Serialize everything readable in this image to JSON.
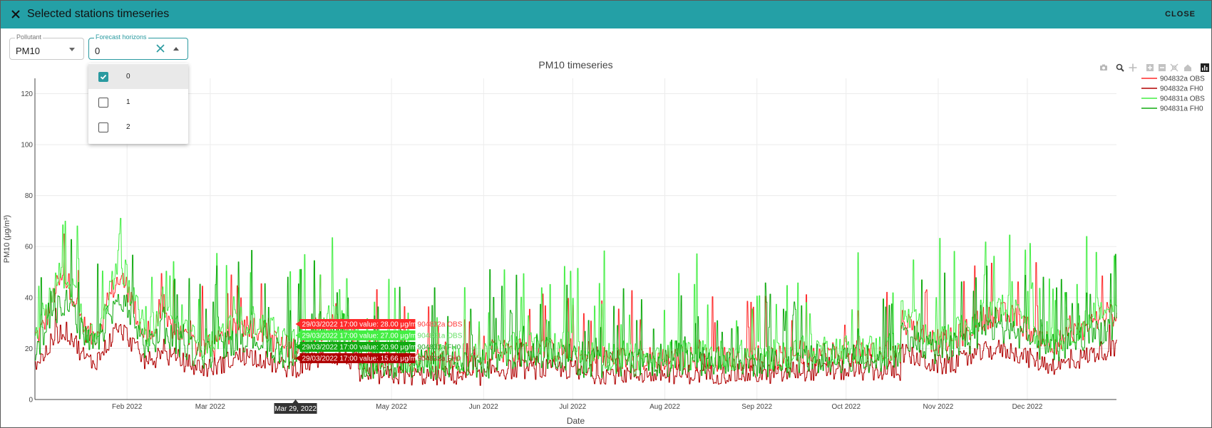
{
  "header": {
    "title": "Selected stations timeseries",
    "close_label": "CLOSE"
  },
  "pollutant": {
    "label": "Pollutant",
    "value": "PM10"
  },
  "horizons": {
    "label": "Forecast horizons",
    "value": "0",
    "options": [
      {
        "label": "0",
        "checked": true
      },
      {
        "label": "1",
        "checked": false
      },
      {
        "label": "2",
        "checked": false
      }
    ]
  },
  "modebar": [
    "camera-icon",
    "zoom-icon",
    "pan-icon",
    "zoom-in-icon",
    "zoom-out-icon",
    "autoscale-icon",
    "reset-axes-icon",
    "plotly-logo-icon"
  ],
  "chart_data": {
    "type": "line",
    "title": "PM10 timeseries",
    "xlabel": "Date",
    "ylabel": "PM10 (μg/m³)",
    "ylim": [
      0,
      126
    ],
    "yticks": [
      0,
      20,
      40,
      60,
      80,
      100,
      120
    ],
    "xticks": [
      "Feb 2022",
      "Mar 2022",
      "May 2022",
      "Jun 2022",
      "Jul 2022",
      "Aug 2022",
      "Sep 2022",
      "Oct 2022",
      "Nov 2022",
      "Dec 2022"
    ],
    "legend_position": "top-right",
    "series": [
      {
        "name": "904832a OBS",
        "color": "#ff2a2a"
      },
      {
        "name": "904832a FH0",
        "color": "#b00000"
      },
      {
        "name": "904831a OBS",
        "color": "#44ee44"
      },
      {
        "name": "904831a FH0",
        "color": "#11aa11"
      }
    ],
    "hover": {
      "x_label": "Mar 29, 2022",
      "tooltips": [
        {
          "text": "29/03/2022 17:00 value: 28.00 μg/m³",
          "series": "904832a OBS",
          "bg": "#ff2a2a",
          "fg": "#ffffff",
          "sc": "#ff3b3b"
        },
        {
          "text": "29/03/2022 17:00 value: 27.00 μg/m³",
          "series": "904831a OBS",
          "bg": "#44ee44",
          "fg": "#ffffff",
          "sc": "#66e066"
        },
        {
          "text": "29/03/2022 17:00 value: 20.90 μg/m³",
          "series": "904831a FH0",
          "bg": "#11aa11",
          "fg": "#ffffff",
          "sc": "#22aa22"
        },
        {
          "text": "29/03/2022 17:00 value: 15.66 μg/m³",
          "series": "904832a FH0",
          "bg": "#b00000",
          "fg": "#ffffff",
          "sc": "#bb2222"
        }
      ]
    }
  }
}
